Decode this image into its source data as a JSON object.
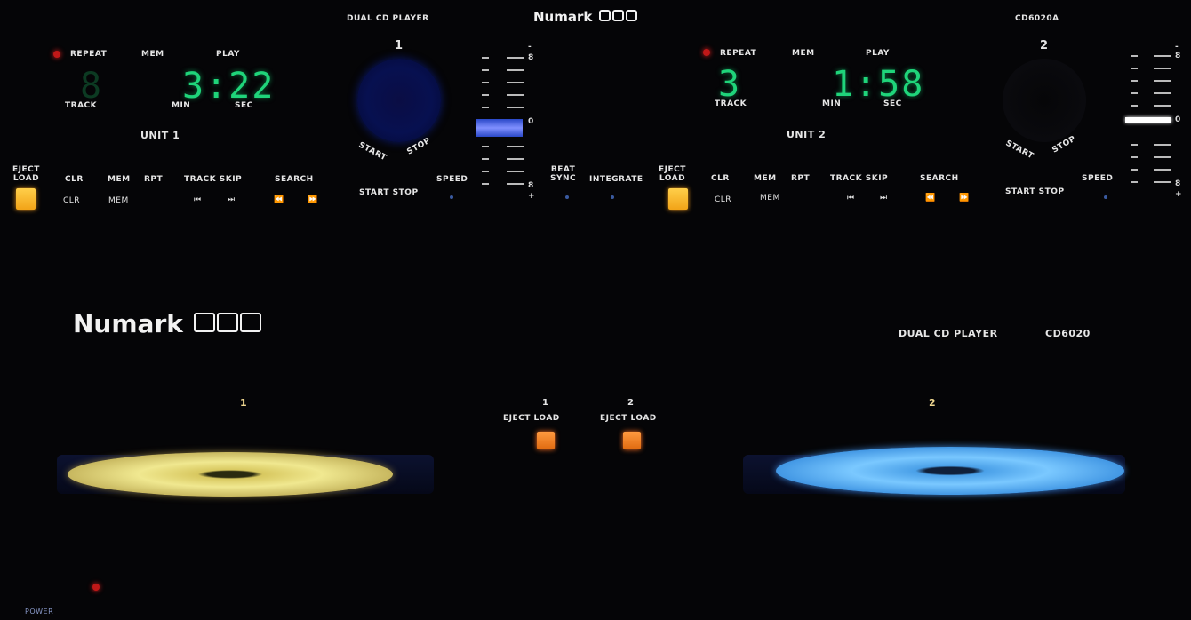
{
  "header": {
    "model_left": "DUAL CD PLAYER",
    "brand": "Numark",
    "model_right": "CD6020A"
  },
  "unit1": {
    "number": "1",
    "repeat": "REPEAT",
    "mem": "MEM",
    "play": "PLAY",
    "track_label": "TRACK",
    "min_label": "MIN",
    "sec_label": "SEC",
    "time": "3:22",
    "unit_label": "UNIT 1",
    "eject_load": "EJECT\nLOAD",
    "clr": "CLR",
    "mem_btn": "MEM",
    "rpt": "RPT",
    "track_skip": "TRACK SKIP",
    "search": "SEARCH",
    "clr_sub": "CLR",
    "mem_sub": "MEM",
    "start": "START",
    "stop": "STOP",
    "start_stop": "START STOP",
    "speed": "SPEED"
  },
  "unit2": {
    "number": "2",
    "repeat": "REPEAT",
    "mem": "MEM",
    "play": "PLAY",
    "track_label": "TRACK",
    "track": "3",
    "min_label": "MIN",
    "sec_label": "SEC",
    "time": "1:58",
    "unit_label": "UNIT 2",
    "eject_load": "EJECT\nLOAD",
    "clr": "CLR",
    "mem_btn": "MEM",
    "rpt": "RPT",
    "track_skip": "TRACK SKIP",
    "search": "SEARCH",
    "clr_sub": "CLR",
    "mem_sub": "MEM",
    "start": "START",
    "stop": "STOP",
    "start_stop": "START STOP",
    "speed": "SPEED"
  },
  "center": {
    "beat_sync": "BEAT\nSYNC",
    "integrate": "INTEGRATE"
  },
  "meter": {
    "minus": "-",
    "plus": "+",
    "top": "8",
    "mid": "0",
    "bottom": "8"
  },
  "transport": {
    "brand": "Numark",
    "model": "DUAL CD PLAYER",
    "model_no": "CD6020",
    "tray1": "1",
    "tray2": "2",
    "eject1_num": "1",
    "eject2_num": "2",
    "eject_load": "EJECT LOAD",
    "power": "POWER"
  },
  "colors": {
    "accent_orange": "#f2a418",
    "lcd_green": "#1fd47a",
    "led_red": "#c01818"
  }
}
